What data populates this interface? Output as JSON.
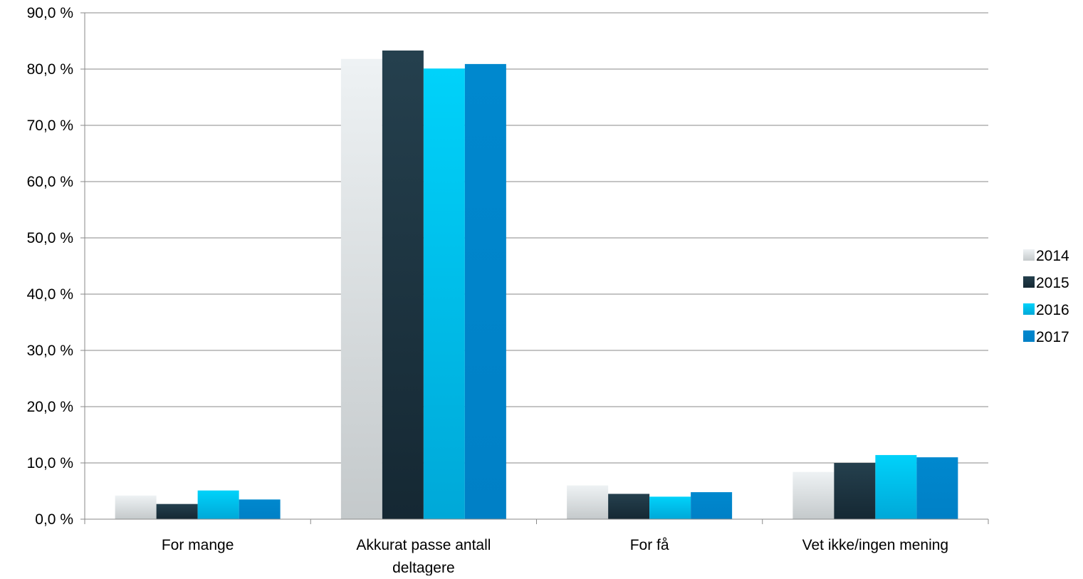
{
  "chart_data": {
    "type": "bar",
    "title": "",
    "xlabel": "",
    "ylabel": "",
    "categories": [
      "For mange",
      "Akkurat passe antall deltagere",
      "For få",
      "Vet ikke/ingen mening"
    ],
    "category_lines": [
      [
        "For mange"
      ],
      [
        "Akkurat passe antall",
        "deltagere"
      ],
      [
        "For få"
      ],
      [
        "Vet ikke/ingen mening"
      ]
    ],
    "series": [
      {
        "name": "2014",
        "values": [
          4.2,
          81.8,
          6.0,
          8.4
        ],
        "color": "#dde3e6",
        "gradient": [
          "#eef2f4",
          "#c4c9cb"
        ]
      },
      {
        "name": "2015",
        "values": [
          2.7,
          83.3,
          4.5,
          10.0
        ],
        "color": "#1f3440",
        "gradient": [
          "#25404e",
          "#152833"
        ]
      },
      {
        "name": "2016",
        "values": [
          5.1,
          80.1,
          4.0,
          11.4
        ],
        "color": "#00c8f0",
        "gradient": [
          "#00d2fa",
          "#00a8d8"
        ]
      },
      {
        "name": "2017",
        "values": [
          3.5,
          80.9,
          4.8,
          11.0
        ],
        "color": "#0086cc",
        "gradient": [
          "#0088ce",
          "#0080c6"
        ]
      }
    ],
    "ylim": [
      0,
      90
    ],
    "y_ticks": [
      0,
      10,
      20,
      30,
      40,
      50,
      60,
      70,
      80,
      90
    ],
    "y_tick_labels": [
      "0,0 %",
      "10,0 %",
      "20,0 %",
      "30,0 %",
      "40,0 %",
      "50,0 %",
      "60,0 %",
      "70,0 %",
      "80,0 %",
      "90,0 %"
    ],
    "grid": true,
    "legend_position": "right"
  }
}
